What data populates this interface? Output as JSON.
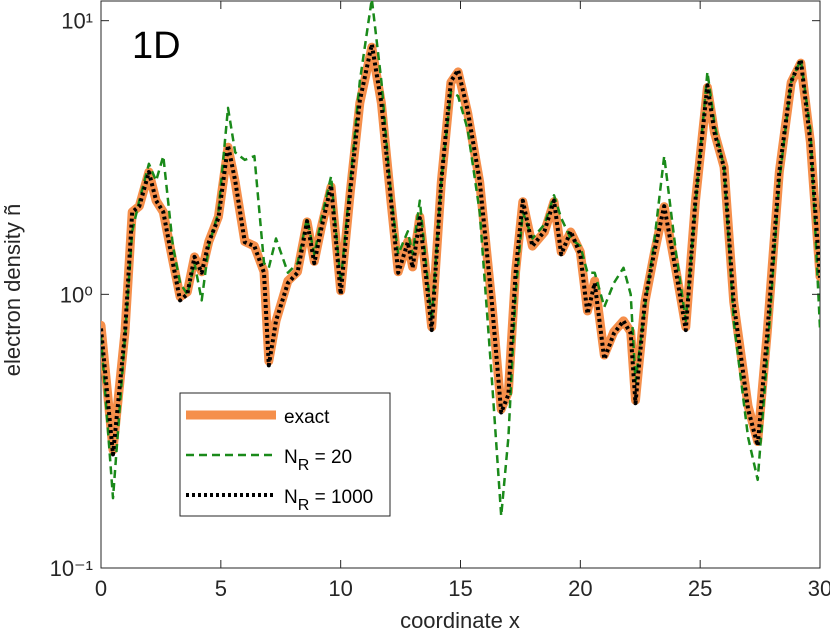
{
  "chart_data": {
    "type": "line",
    "annotation": "1D",
    "xlabel": "coordinate x",
    "ylabel": "electron density ñ",
    "xlim": [
      0,
      30
    ],
    "xticks": [
      0,
      5,
      10,
      15,
      20,
      25,
      30
    ],
    "ylim": [
      0.1,
      11.8
    ],
    "log_y": true,
    "yticks": [
      {
        "value": 0.1,
        "label": "10⁻¹"
      },
      {
        "value": 1,
        "label": "10⁰"
      },
      {
        "value": 10,
        "label": "10¹"
      }
    ],
    "legend": "lower left",
    "x": [
      0,
      0.5,
      1.0,
      1.3,
      1.6,
      2.0,
      2.3,
      2.6,
      3.0,
      3.3,
      3.6,
      3.9,
      4.2,
      4.5,
      4.9,
      5.3,
      5.6,
      6.0,
      6.4,
      6.8,
      7.0,
      7.3,
      7.8,
      8.2,
      8.6,
      8.9,
      9.2,
      9.6,
      10.0,
      10.4,
      10.8,
      11.3,
      11.7,
      12.1,
      12.4,
      12.8,
      13.0,
      13.3,
      13.8,
      14.2,
      14.6,
      14.9,
      15.3,
      15.8,
      16.3,
      16.7,
      17.0,
      17.3,
      17.6,
      18.0,
      18.5,
      18.9,
      19.2,
      19.6,
      20.0,
      20.3,
      20.6,
      21.0,
      21.4,
      21.8,
      22.1,
      22.3,
      22.7,
      23.1,
      23.5,
      24.0,
      24.4,
      24.8,
      25.3,
      25.6,
      26.0,
      26.4,
      27.0,
      27.4,
      27.8,
      28.3,
      28.8,
      29.2,
      29.6,
      30.0
    ],
    "series": [
      {
        "name": "exact",
        "color": "#f58f4b",
        "width": 9,
        "dash": "",
        "values": [
          0.77,
          0.27,
          0.73,
          2.0,
          2.1,
          2.8,
          2.2,
          2.0,
          1.32,
          0.98,
          1.02,
          1.37,
          1.21,
          1.56,
          1.92,
          3.45,
          2.57,
          1.56,
          1.5,
          1.21,
          0.57,
          0.8,
          1.12,
          1.21,
          1.84,
          1.32,
          1.77,
          2.47,
          1.03,
          2.37,
          5.0,
          8.0,
          5.0,
          2.18,
          1.21,
          1.56,
          1.26,
          1.92,
          0.76,
          2.57,
          5.95,
          6.5,
          4.6,
          2.57,
          0.94,
          0.38,
          0.44,
          1.21,
          2.18,
          1.5,
          1.69,
          2.18,
          1.43,
          1.69,
          1.43,
          0.87,
          1.12,
          0.6,
          0.73,
          0.8,
          0.73,
          0.41,
          0.94,
          1.43,
          2.09,
          1.21,
          0.76,
          2.18,
          5.7,
          3.9,
          2.92,
          0.94,
          0.39,
          0.29,
          0.73,
          2.8,
          5.95,
          7.0,
          3.6,
          1.16
        ]
      },
      {
        "name": "N_R = 20",
        "color": "#1a8a1a",
        "width": 2.5,
        "dash": "8 5",
        "values": [
          0.7,
          0.18,
          0.7,
          1.7,
          2.2,
          3.0,
          2.6,
          3.2,
          1.5,
          1.1,
          1.0,
          1.3,
          0.95,
          1.5,
          2.0,
          4.8,
          3.3,
          3.1,
          3.2,
          1.3,
          1.25,
          1.6,
          1.2,
          1.3,
          1.9,
          1.4,
          1.9,
          2.7,
          1.1,
          2.6,
          6.0,
          12.0,
          6.0,
          2.3,
          1.4,
          1.7,
          1.4,
          2.2,
          0.8,
          2.6,
          5.5,
          5.3,
          4.0,
          2.0,
          0.5,
          0.155,
          0.3,
          1.0,
          2.0,
          1.6,
          1.8,
          2.3,
          1.9,
          1.6,
          1.5,
          1.2,
          1.2,
          0.9,
          1.1,
          1.25,
          1.0,
          0.48,
          0.9,
          1.6,
          3.2,
          1.4,
          0.8,
          2.1,
          6.5,
          4.2,
          2.9,
          0.8,
          0.3,
          0.21,
          0.6,
          2.6,
          6.0,
          7.2,
          4.0,
          0.75
        ]
      },
      {
        "name": "N_R = 1000",
        "color": "#000000",
        "width": 4,
        "dash": "3 3",
        "values": [
          0.75,
          0.26,
          0.72,
          2.0,
          2.1,
          2.8,
          2.2,
          2.0,
          1.3,
          0.95,
          1.0,
          1.37,
          1.2,
          1.55,
          1.9,
          3.5,
          2.6,
          1.55,
          1.5,
          1.2,
          0.55,
          0.8,
          1.1,
          1.2,
          1.85,
          1.3,
          1.75,
          2.5,
          1.0,
          2.4,
          5.1,
          8.2,
          5.0,
          2.2,
          1.2,
          1.55,
          1.25,
          1.9,
          0.74,
          2.6,
          6.0,
          6.6,
          4.7,
          2.6,
          0.95,
          0.37,
          0.43,
          1.2,
          2.2,
          1.5,
          1.7,
          2.2,
          1.4,
          1.7,
          1.4,
          0.85,
          1.1,
          0.58,
          0.72,
          0.8,
          0.72,
          0.4,
          0.95,
          1.45,
          2.1,
          1.2,
          0.74,
          2.2,
          5.8,
          3.9,
          2.9,
          0.93,
          0.38,
          0.28,
          0.72,
          2.8,
          6.0,
          7.2,
          3.6,
          1.15
        ]
      }
    ]
  }
}
